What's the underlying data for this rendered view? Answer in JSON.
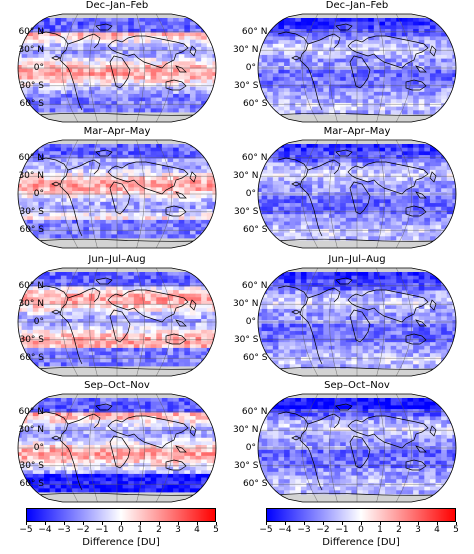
{
  "panels": [
    {
      "title": "Dec–Jan–Feb",
      "column": "left",
      "row": 0,
      "pattern": "mixed",
      "sign": 1
    },
    {
      "title": "Dec–Jan–Feb",
      "column": "right",
      "row": 0,
      "pattern": "blue",
      "sign": -1
    },
    {
      "title": "Mar–Apr–May",
      "column": "left",
      "row": 1,
      "pattern": "mixed",
      "sign": 1
    },
    {
      "title": "Mar–Apr–May",
      "column": "right",
      "row": 1,
      "pattern": "blue",
      "sign": -1
    },
    {
      "title": "Jun–Jul–Aug",
      "column": "left",
      "row": 2,
      "pattern": "mixed",
      "sign": 1
    },
    {
      "title": "Jun–Jul–Aug",
      "column": "right",
      "row": 2,
      "pattern": "blue",
      "sign": -1
    },
    {
      "title": "Sep–Oct–Nov",
      "column": "left",
      "row": 3,
      "pattern": "mixed",
      "sign": 1
    },
    {
      "title": "Sep–Oct–Nov",
      "column": "right",
      "row": 3,
      "pattern": "blue",
      "sign": -1
    }
  ],
  "lat_labels": [
    "60° N",
    "30° N",
    "0°",
    "30° S",
    "60° S"
  ],
  "colorbars": [
    {
      "label": "Difference [DU]",
      "ticks": [
        "−5",
        "−4",
        "−3",
        "−2",
        "−1",
        "0",
        "1",
        "2",
        "3",
        "4",
        "5"
      ],
      "min": -5,
      "max": 5
    },
    {
      "label": "Difference [DU]",
      "ticks": [
        "−5",
        "−4",
        "−3",
        "−2",
        "−1",
        "0",
        "1",
        "2",
        "3",
        "4",
        "5"
      ],
      "min": -5,
      "max": 5
    }
  ],
  "colors": {
    "negative": "#0000ff",
    "zero": "#ffffff",
    "positive": "#ff0000",
    "missing": "#d3d3d3",
    "coast": "#000000"
  }
}
